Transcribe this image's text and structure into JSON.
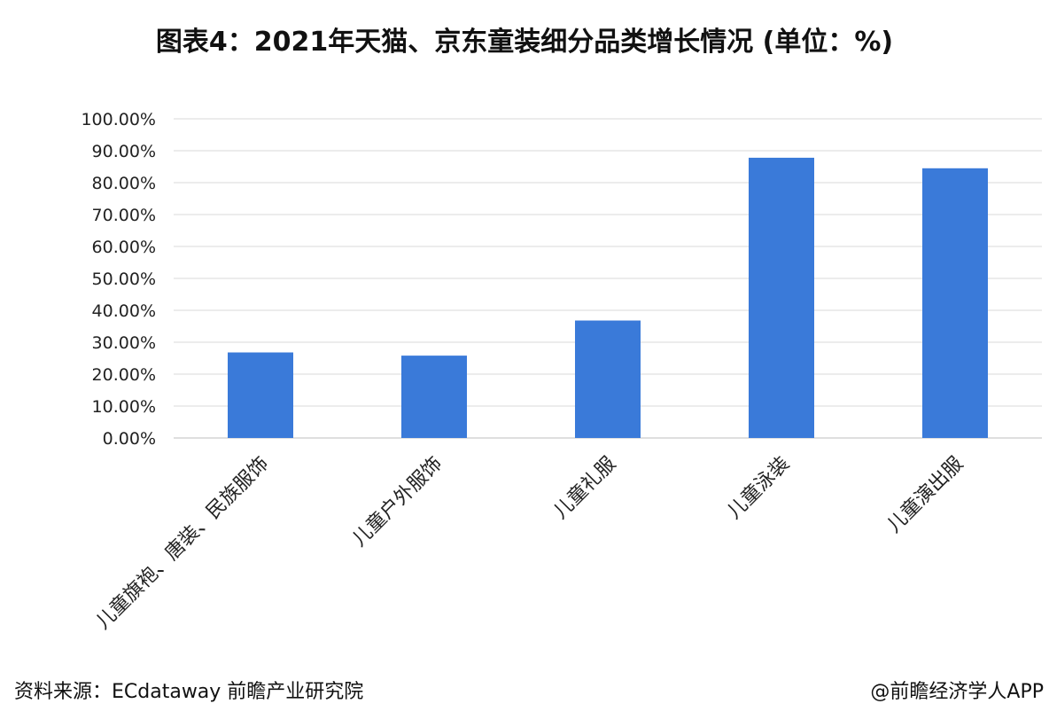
{
  "title": "图表4：2021年天猫、京东童装细分品类增长情况 (单位：%)",
  "colors": {
    "bar": "#3a7ad9",
    "grid": "#d9d9d9",
    "axis": "#bfbfbf",
    "text": "#222222"
  },
  "chart_data": {
    "type": "bar",
    "categories": [
      "儿童旗袍、唐装、民族服饰",
      "儿童户外服饰",
      "儿童礼服",
      "儿童泳装",
      "儿童演出服"
    ],
    "values": [
      26.8,
      25.8,
      36.8,
      87.8,
      84.5
    ],
    "ylim": [
      0,
      100
    ],
    "yticks": [
      "0.00%",
      "10.00%",
      "20.00%",
      "30.00%",
      "40.00%",
      "50.00%",
      "60.00%",
      "70.00%",
      "80.00%",
      "90.00%",
      "100.00%"
    ],
    "grid": true,
    "legend": "none"
  },
  "footer": {
    "source": "资料来源：ECdataway 前瞻产业研究院",
    "credit": "@前瞻经济学人APP"
  }
}
